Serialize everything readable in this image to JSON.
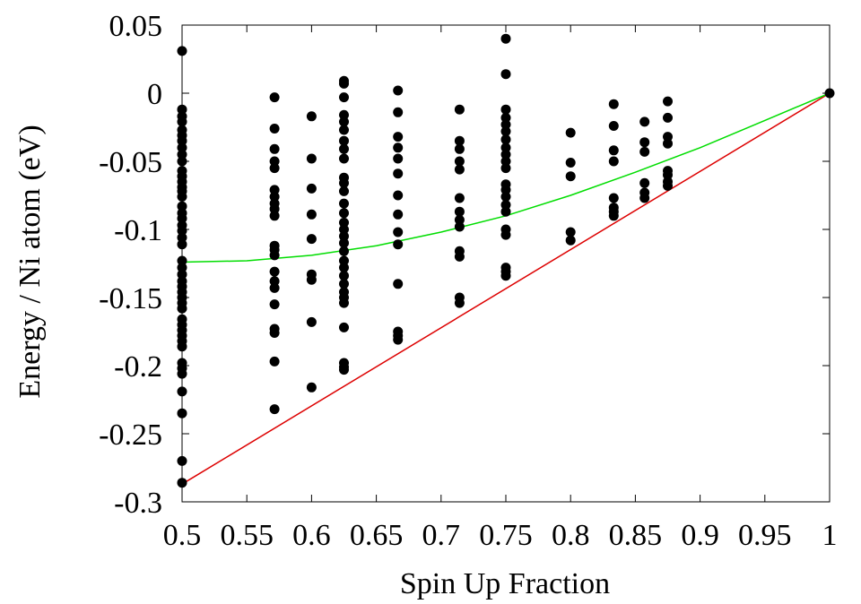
{
  "chart_data": {
    "type": "scatter",
    "title": "",
    "xlabel": "Spin Up Fraction",
    "ylabel": "Energy / Ni atom (eV)",
    "xlim": [
      0.5,
      1.0
    ],
    "ylim": [
      -0.3,
      0.05
    ],
    "xticks": [
      "0.5",
      "0.55",
      "0.6",
      "0.65",
      "0.7",
      "0.75",
      "0.8",
      "0.85",
      "0.9",
      "0.95",
      "1"
    ],
    "yticks": [
      "0.05",
      "0",
      "-0.05",
      "-0.1",
      "-0.15",
      "-0.2",
      "-0.25",
      "-0.3"
    ],
    "grid": false,
    "legend": "none",
    "colors": {
      "points": "#000000",
      "green_curve": "#00dd00",
      "red_line": "#dd0000"
    },
    "points": [
      {
        "x": 0.5,
        "y": [
          0.031,
          -0.012,
          -0.017,
          -0.021,
          -0.027,
          -0.031,
          -0.035,
          -0.04,
          -0.045,
          -0.05,
          -0.057,
          -0.061,
          -0.065,
          -0.069,
          -0.072,
          -0.076,
          -0.083,
          -0.088,
          -0.092,
          -0.097,
          -0.101,
          -0.106,
          -0.111,
          -0.123,
          -0.128,
          -0.133,
          -0.138,
          -0.142,
          -0.146,
          -0.15,
          -0.154,
          -0.158,
          -0.166,
          -0.17,
          -0.174,
          -0.178,
          -0.182,
          -0.186,
          -0.198,
          -0.202,
          -0.206,
          -0.219,
          -0.235,
          -0.27,
          -0.286
        ]
      },
      {
        "x": 0.5714,
        "y": [
          -0.003,
          -0.026,
          -0.041,
          -0.05,
          -0.055,
          -0.071,
          -0.076,
          -0.081,
          -0.085,
          -0.09,
          -0.112,
          -0.115,
          -0.119,
          -0.131,
          -0.138,
          -0.143,
          -0.155,
          -0.173,
          -0.176,
          -0.197,
          -0.232
        ]
      },
      {
        "x": 0.6,
        "y": [
          -0.017,
          -0.048,
          -0.07,
          -0.089,
          -0.107,
          -0.133,
          -0.137,
          -0.168,
          -0.216
        ]
      },
      {
        "x": 0.625,
        "y": [
          0.009,
          0.007,
          -0.003,
          -0.016,
          -0.021,
          -0.027,
          -0.035,
          -0.041,
          -0.048,
          -0.062,
          -0.066,
          -0.072,
          -0.081,
          -0.088,
          -0.095,
          -0.1,
          -0.105,
          -0.11,
          -0.116,
          -0.123,
          -0.128,
          -0.134,
          -0.14,
          -0.146,
          -0.15,
          -0.154,
          -0.172,
          -0.198,
          -0.201,
          -0.203
        ]
      },
      {
        "x": 0.6667,
        "y": [
          0.002,
          -0.014,
          -0.032,
          -0.04,
          -0.048,
          -0.059,
          -0.075,
          -0.089,
          -0.102,
          -0.111,
          -0.14,
          -0.175,
          -0.178,
          -0.181
        ]
      },
      {
        "x": 0.7143,
        "y": [
          -0.012,
          -0.035,
          -0.041,
          -0.05,
          -0.056,
          -0.077,
          -0.087,
          -0.093,
          -0.098,
          -0.116,
          -0.12,
          -0.15,
          -0.154
        ]
      },
      {
        "x": 0.75,
        "y": [
          0.04,
          0.014,
          -0.012,
          -0.018,
          -0.023,
          -0.028,
          -0.034,
          -0.04,
          -0.045,
          -0.05,
          -0.055,
          -0.067,
          -0.071,
          -0.076,
          -0.082,
          -0.087,
          -0.1,
          -0.104,
          -0.128,
          -0.131,
          -0.134
        ]
      },
      {
        "x": 0.8,
        "y": [
          -0.029,
          -0.051,
          -0.061,
          -0.102,
          -0.108
        ]
      },
      {
        "x": 0.8333,
        "y": [
          -0.008,
          -0.024,
          -0.042,
          -0.05,
          -0.077,
          -0.084,
          -0.087,
          -0.09
        ]
      },
      {
        "x": 0.8571,
        "y": [
          -0.021,
          -0.036,
          -0.043,
          -0.066,
          -0.073,
          -0.077
        ]
      },
      {
        "x": 0.875,
        "y": [
          -0.006,
          -0.018,
          -0.032,
          -0.037,
          -0.057,
          -0.06,
          -0.065,
          -0.068
        ]
      },
      {
        "x": 1.0,
        "y": [
          0.0
        ]
      }
    ],
    "lines": [
      {
        "color": "#dd0000",
        "x": [
          0.5,
          1.0
        ],
        "y": [
          -0.287,
          0.0
        ]
      },
      {
        "color": "#00dd00",
        "x": [
          0.5,
          0.55,
          0.6,
          0.65,
          0.7,
          0.75,
          0.8,
          0.85,
          0.9,
          0.95,
          1.0
        ],
        "y": [
          -0.124,
          -0.123,
          -0.119,
          -0.112,
          -0.102,
          -0.09,
          -0.075,
          -0.058,
          -0.04,
          -0.02,
          0.0
        ]
      }
    ]
  }
}
